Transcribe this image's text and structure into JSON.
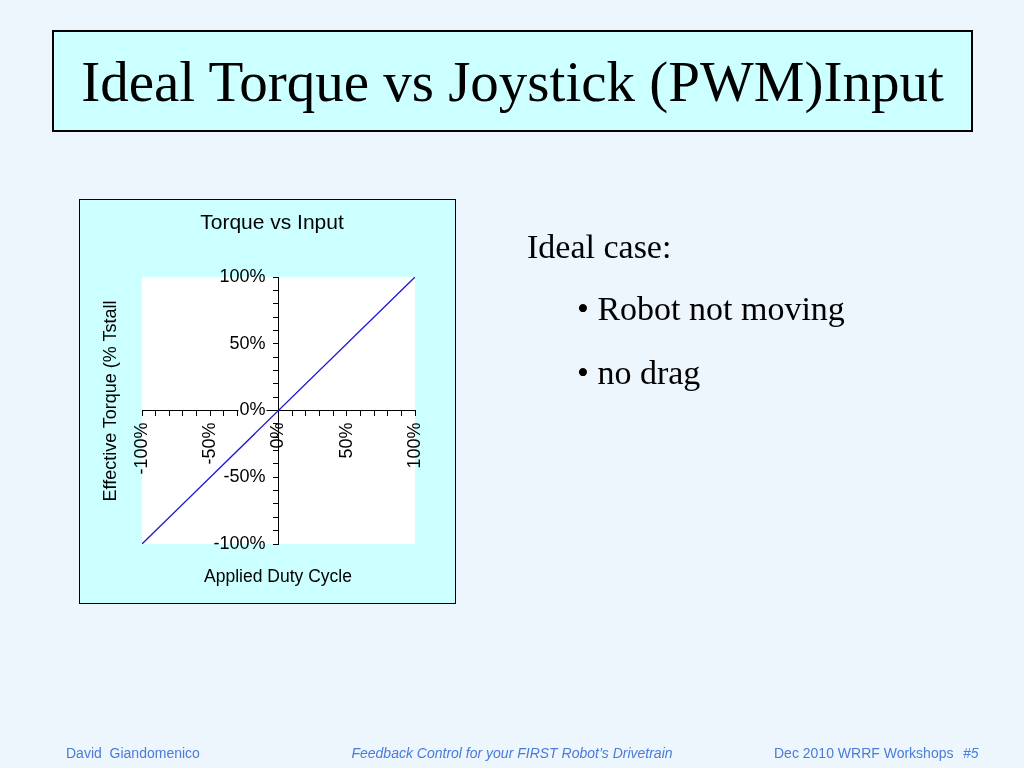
{
  "chart_data": {
    "type": "line",
    "title": "Ideal Torque vs Joystick (PWM)Input",
    "subtitle": "Torque vs Input",
    "xlabel": "Applied Duty Cycle",
    "ylabel": "Effective Torque (% Tstall",
    "x": [
      -100,
      100
    ],
    "series": [
      {
        "color": "#1a1ad6",
        "values": [
          -100,
          100
        ]
      }
    ],
    "xlim": [
      -100,
      100
    ],
    "ylim": [
      -100,
      100
    ],
    "xticks": [
      {
        "value": -100,
        "label": "-100%"
      },
      {
        "value": -90,
        "label": null
      },
      {
        "value": -80,
        "label": null
      },
      {
        "value": -70,
        "label": null
      },
      {
        "value": -60,
        "label": null
      },
      {
        "value": -50,
        "label": "-50%"
      },
      {
        "value": -40,
        "label": null
      },
      {
        "value": -30,
        "label": null
      },
      {
        "value": -20,
        "label": null
      },
      {
        "value": -10,
        "label": null
      },
      {
        "value": 0,
        "label": "0%"
      },
      {
        "value": 10,
        "label": null
      },
      {
        "value": 20,
        "label": null
      },
      {
        "value": 30,
        "label": null
      },
      {
        "value": 40,
        "label": null
      },
      {
        "value": 50,
        "label": "50%"
      },
      {
        "value": 60,
        "label": null
      },
      {
        "value": 70,
        "label": null
      },
      {
        "value": 80,
        "label": null
      },
      {
        "value": 90,
        "label": null
      },
      {
        "value": 100,
        "label": "100%"
      }
    ],
    "yticks": [
      {
        "value": -100,
        "label": "-100%"
      },
      {
        "value": -90,
        "label": null
      },
      {
        "value": -80,
        "label": null
      },
      {
        "value": -70,
        "label": null
      },
      {
        "value": -60,
        "label": null
      },
      {
        "value": -50,
        "label": "-50%"
      },
      {
        "value": -40,
        "label": null
      },
      {
        "value": -30,
        "label": null
      },
      {
        "value": -20,
        "label": null
      },
      {
        "value": -10,
        "label": null
      },
      {
        "value": 0,
        "label": "0%"
      },
      {
        "value": 10,
        "label": null
      },
      {
        "value": 20,
        "label": null
      },
      {
        "value": 30,
        "label": null
      },
      {
        "value": 40,
        "label": null
      },
      {
        "value": 50,
        "label": "50%"
      },
      {
        "value": 60,
        "label": null
      },
      {
        "value": 70,
        "label": null
      },
      {
        "value": 80,
        "label": null
      },
      {
        "value": 90,
        "label": null
      },
      {
        "value": 100,
        "label": "100%"
      }
    ],
    "line_style": "solid",
    "annotations": [
      "Ideal case:",
      "• Robot not moving",
      "• no drag",
      "David  Giandomenico",
      "Feedback Control for your FIRST Robot’s Drivetrain",
      "Dec 2010 WRRF Workshops",
      "#5"
    ]
  }
}
